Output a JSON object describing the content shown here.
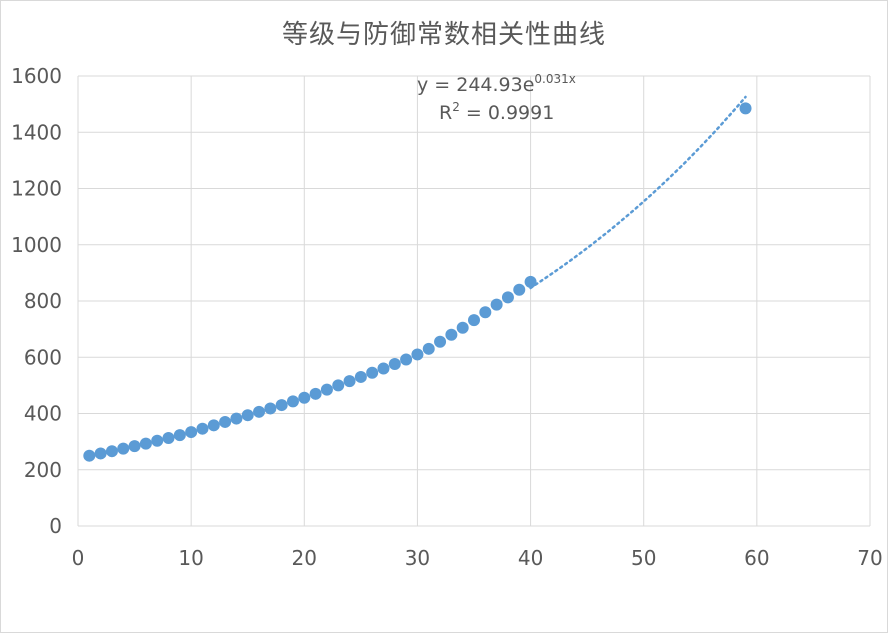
{
  "chart_data": {
    "type": "scatter",
    "title": "等级与防御常数相关性曲线",
    "xlabel": "",
    "ylabel": "",
    "xlim": [
      0,
      70
    ],
    "ylim": [
      0,
      1600
    ],
    "x_ticks": [
      "0",
      "10",
      "20",
      "30",
      "40",
      "50",
      "60",
      "70"
    ],
    "y_ticks": [
      "0",
      "200",
      "400",
      "600",
      "800",
      "1000",
      "1200",
      "1400",
      "1600"
    ],
    "grid": true,
    "point_color": "#5b9bd5",
    "series": [
      {
        "x": [
          1,
          2,
          3,
          4,
          5,
          6,
          7,
          8,
          9,
          10,
          11,
          12,
          13,
          14,
          15,
          16,
          17,
          18,
          19,
          20,
          21,
          22,
          23,
          24,
          25,
          26,
          27,
          28,
          29,
          30,
          31,
          32,
          33,
          34,
          35,
          36,
          37,
          38,
          39,
          40,
          59
        ],
        "y": [
          250,
          258,
          266,
          275,
          284,
          293,
          303,
          313,
          323,
          334,
          346,
          358,
          370,
          382,
          394,
          406,
          418,
          430,
          443,
          456,
          470,
          485,
          500,
          515,
          530,
          545,
          560,
          576,
          592,
          610,
          630,
          655,
          680,
          705,
          732,
          760,
          787,
          813,
          840,
          868,
          1485
        ]
      }
    ],
    "trendline": {
      "type": "exponential",
      "a": 244.93,
      "b": 0.031,
      "x_range": [
        40,
        59
      ],
      "equation_text": {
        "prefix": "y = 244.93e",
        "exponent": "0.031x"
      },
      "r2_text": {
        "prefix": "R",
        "sup": "2",
        "suffix": " = 0.9991"
      }
    }
  }
}
